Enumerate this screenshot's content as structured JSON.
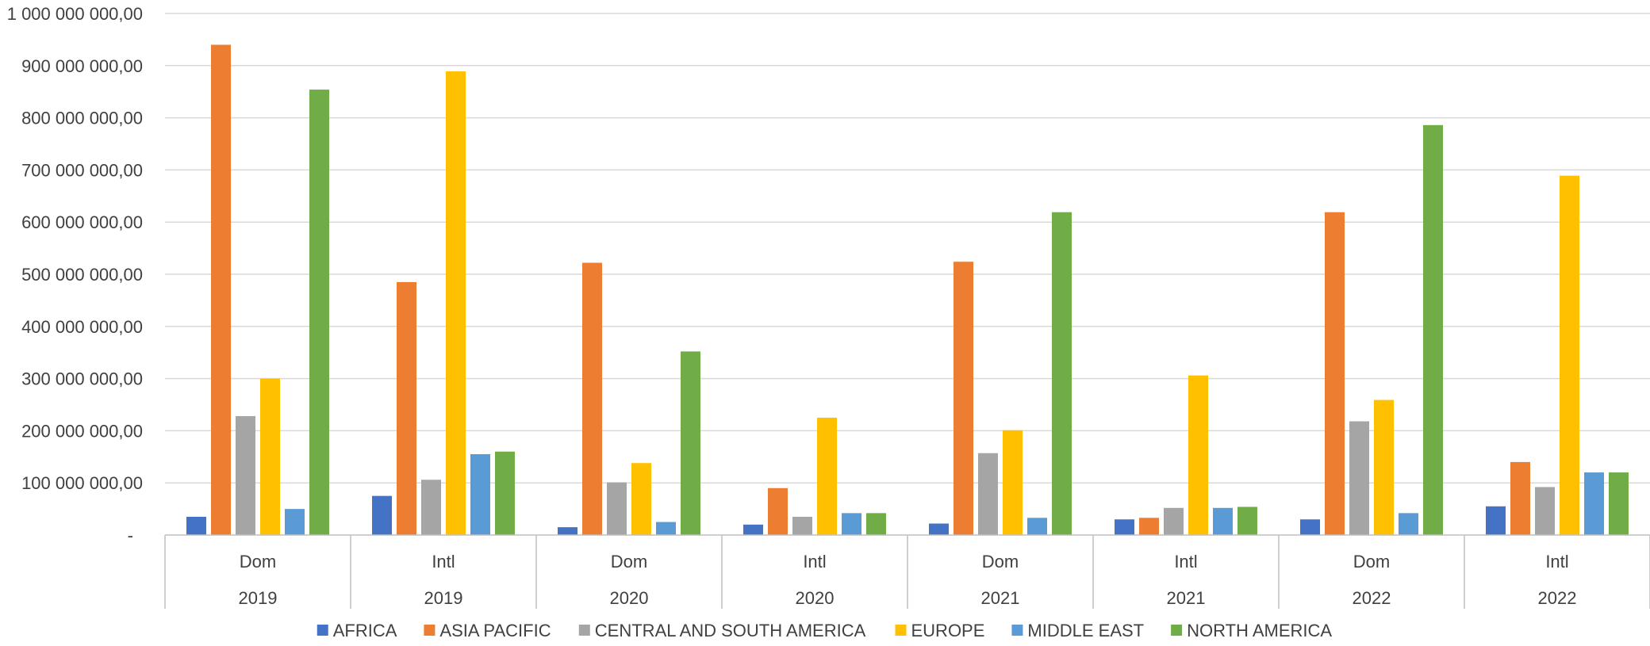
{
  "chart_data": {
    "type": "bar",
    "categories": [
      {
        "sub": "Dom",
        "year": "2019"
      },
      {
        "sub": "Intl",
        "year": "2019"
      },
      {
        "sub": "Dom",
        "year": "2020"
      },
      {
        "sub": "Intl",
        "year": "2020"
      },
      {
        "sub": "Dom",
        "year": "2021"
      },
      {
        "sub": "Intl",
        "year": "2021"
      },
      {
        "sub": "Dom",
        "year": "2022"
      },
      {
        "sub": "Intl",
        "year": "2022"
      }
    ],
    "series": [
      {
        "name": "AFRICA",
        "color": "#4472C4",
        "values": [
          35000000,
          75000000,
          15000000,
          20000000,
          22000000,
          30000000,
          30000000,
          55000000
        ]
      },
      {
        "name": "ASIA PACIFIC",
        "color": "#ED7D31",
        "values": [
          940000000,
          485000000,
          522000000,
          90000000,
          524000000,
          33000000,
          619000000,
          140000000
        ]
      },
      {
        "name": "CENTRAL AND SOUTH AMERICA",
        "color": "#A5A5A5",
        "values": [
          228000000,
          106000000,
          101000000,
          35000000,
          157000000,
          52000000,
          218000000,
          92000000
        ]
      },
      {
        "name": "EUROPE",
        "color": "#FFC000",
        "values": [
          300000000,
          889000000,
          138000000,
          225000000,
          201000000,
          306000000,
          259000000,
          689000000
        ]
      },
      {
        "name": "MIDDLE EAST",
        "color": "#5B9BD5",
        "values": [
          50000000,
          155000000,
          25000000,
          42000000,
          33000000,
          52000000,
          42000000,
          120000000
        ]
      },
      {
        "name": "NORTH AMERICA",
        "color": "#70AD47",
        "values": [
          854000000,
          160000000,
          352000000,
          42000000,
          619000000,
          54000000,
          786000000,
          120000000
        ]
      }
    ],
    "ylim": [
      0,
      1000000000
    ],
    "yticks": [
      {
        "value": 0,
        "label": "-"
      },
      {
        "value": 100000000,
        "label": "100 000 000,00"
      },
      {
        "value": 200000000,
        "label": "200 000 000,00"
      },
      {
        "value": 300000000,
        "label": "300 000 000,00"
      },
      {
        "value": 400000000,
        "label": "400 000 000,00"
      },
      {
        "value": 500000000,
        "label": "500 000 000,00"
      },
      {
        "value": 600000000,
        "label": "600 000 000,00"
      },
      {
        "value": 700000000,
        "label": "700 000 000,00"
      },
      {
        "value": 800000000,
        "label": "800 000 000,00"
      },
      {
        "value": 900000000,
        "label": "900 000 000,00"
      },
      {
        "value": 1000000000,
        "label": "1 000 000 000,00"
      }
    ],
    "grid": true,
    "legend_position": "bottom",
    "colors": {
      "grid": "#D9D9D9",
      "axis": "#BFBFBF",
      "text": "#404040"
    }
  }
}
